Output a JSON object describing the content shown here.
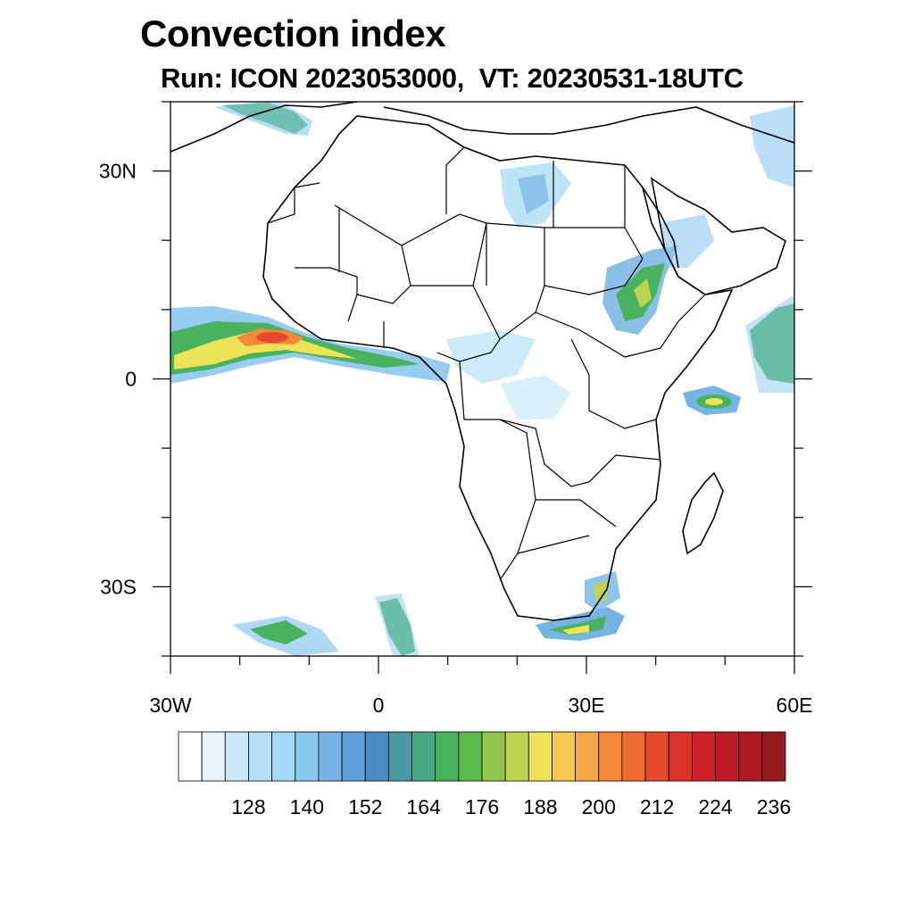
{
  "title": "Convection index",
  "subtitle": "Run: ICON 2023053000,  VT: 20230531-18UTC",
  "map": {
    "lon_range": [
      -30,
      60
    ],
    "lat_range": [
      -40,
      40
    ],
    "lat_ticks": [
      {
        "value": 30,
        "label": "30N"
      },
      {
        "value": 0,
        "label": "0"
      },
      {
        "value": -30,
        "label": "30S"
      }
    ],
    "lon_ticks": [
      {
        "value": -30,
        "label": "30W"
      },
      {
        "value": 0,
        "label": "0"
      },
      {
        "value": 30,
        "label": "30E"
      },
      {
        "value": 60,
        "label": "60E"
      }
    ]
  },
  "colorbar": {
    "labels": [
      "128",
      "140",
      "152",
      "164",
      "176",
      "188",
      "200",
      "212",
      "224",
      "236"
    ],
    "colors": [
      "#ffffff",
      "#e8f4fb",
      "#cde9f7",
      "#b6e0f5",
      "#a2d9f5",
      "#8bc8ee",
      "#76b5e3",
      "#5d9fd7",
      "#4a8bc4",
      "#4a9aa2",
      "#4aa884",
      "#49b25f",
      "#5dbb4d",
      "#93c64e",
      "#bed451",
      "#ece456",
      "#f6ca50",
      "#f6a745",
      "#f28a3a",
      "#ee6b32",
      "#e64a2d",
      "#dc312b",
      "#cd2029",
      "#be1a27",
      "#aa1924",
      "#961a20"
    ]
  }
}
